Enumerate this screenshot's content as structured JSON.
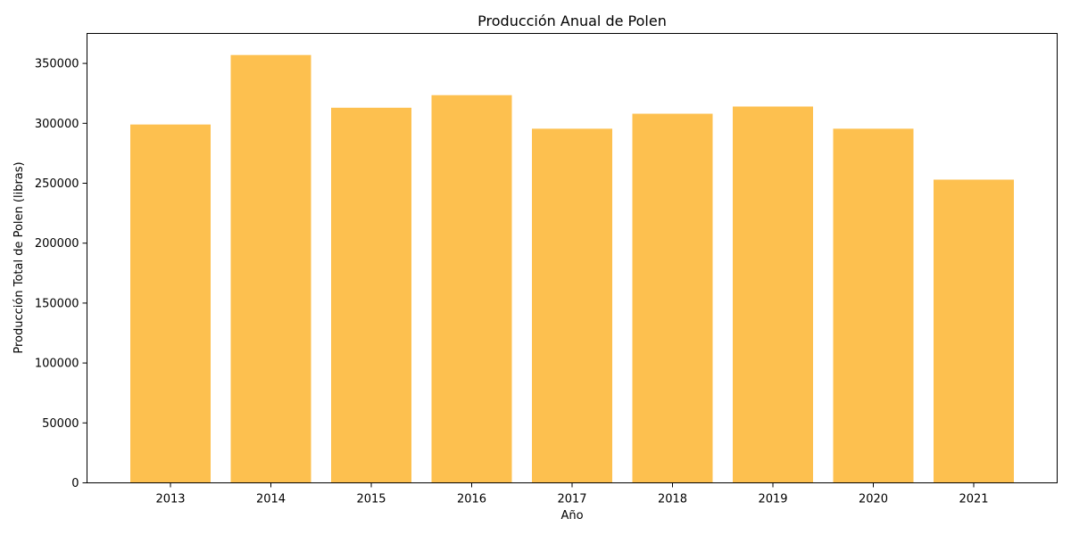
{
  "chart_data": {
    "type": "bar",
    "title": "Producción Anual de Polen",
    "xlabel": "Año",
    "ylabel": "Producción Total de Polen (libras)",
    "categories": [
      "2013",
      "2014",
      "2015",
      "2016",
      "2017",
      "2018",
      "2019",
      "2020",
      "2021"
    ],
    "values": [
      299000,
      357000,
      313000,
      323500,
      295500,
      308000,
      314000,
      295500,
      253000
    ],
    "ylim": [
      0,
      375000
    ],
    "yticks": [
      "0",
      "50000",
      "100000",
      "150000",
      "200000",
      "250000",
      "300000",
      "350000"
    ],
    "grid": false,
    "bar_color": "#fdc04f"
  }
}
